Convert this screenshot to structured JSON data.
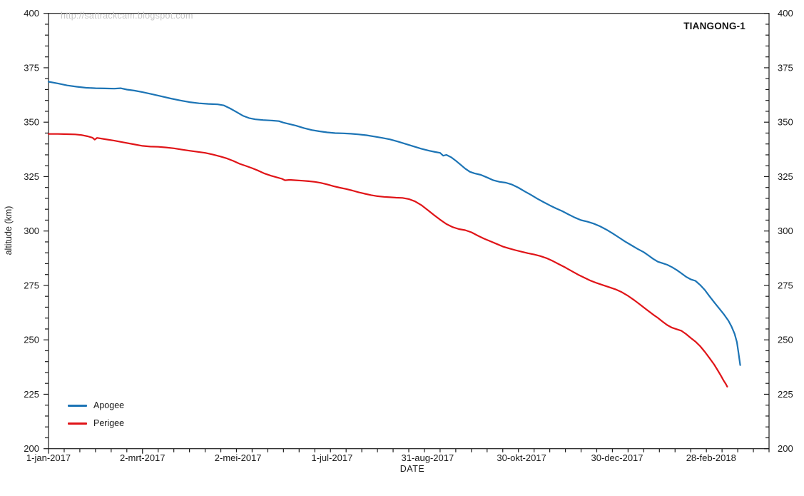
{
  "header": {
    "title": "TIANGONG-1",
    "watermark": "http://sattrackcam.blogspot.com"
  },
  "chart_data": {
    "type": "line",
    "title": "TIANGONG-1",
    "watermark": "http://sattrackcam.blogspot.com",
    "xlabel": "DATE",
    "ylabel": "altitude (km)",
    "grid": false,
    "legend_position": "bottom-left",
    "axis_color": "#1a1a1a",
    "tick_label_color": "#1a1a1a",
    "ylim": [
      200,
      400
    ],
    "y_major_step": 25,
    "y_minor_step": 5,
    "y_tick_labels": [
      200,
      225,
      250,
      275,
      300,
      325,
      350,
      375,
      400
    ],
    "xlim_days": [
      0,
      460
    ],
    "x_minor_step_days": 10,
    "x_ticks": [
      {
        "day": 0,
        "label": "1-jan-2017"
      },
      {
        "day": 60,
        "label": "2-mrt-2017"
      },
      {
        "day": 121,
        "label": "2-mei-2017"
      },
      {
        "day": 181,
        "label": "1-jul-2017"
      },
      {
        "day": 242,
        "label": "31-aug-2017"
      },
      {
        "day": 302,
        "label": "30-okt-2017"
      },
      {
        "day": 363,
        "label": "30-dec-2017"
      },
      {
        "day": 423,
        "label": "28-feb-2018"
      }
    ],
    "series": [
      {
        "name": "Apogee",
        "color": "#1c74b5",
        "points": [
          [
            0,
            368.6
          ],
          [
            6,
            367.8
          ],
          [
            12,
            366.9
          ],
          [
            18,
            366.3
          ],
          [
            24,
            365.8
          ],
          [
            30,
            365.6
          ],
          [
            36,
            365.5
          ],
          [
            42,
            365.4
          ],
          [
            46,
            365.6
          ],
          [
            50,
            365.0
          ],
          [
            55,
            364.5
          ],
          [
            60,
            363.8
          ],
          [
            66,
            362.9
          ],
          [
            72,
            361.9
          ],
          [
            78,
            360.9
          ],
          [
            84,
            360.0
          ],
          [
            90,
            359.2
          ],
          [
            96,
            358.7
          ],
          [
            102,
            358.4
          ],
          [
            108,
            358.2
          ],
          [
            112,
            357.7
          ],
          [
            116,
            356.3
          ],
          [
            120,
            354.7
          ],
          [
            124,
            353.0
          ],
          [
            128,
            351.9
          ],
          [
            132,
            351.3
          ],
          [
            137,
            351.0
          ],
          [
            142,
            350.8
          ],
          [
            147,
            350.5
          ],
          [
            150,
            349.8
          ],
          [
            154,
            349.1
          ],
          [
            158,
            348.4
          ],
          [
            163,
            347.3
          ],
          [
            168,
            346.4
          ],
          [
            173,
            345.8
          ],
          [
            178,
            345.3
          ],
          [
            183,
            345.0
          ],
          [
            188,
            344.9
          ],
          [
            193,
            344.7
          ],
          [
            198,
            344.4
          ],
          [
            203,
            344.0
          ],
          [
            208,
            343.4
          ],
          [
            213,
            342.8
          ],
          [
            218,
            342.1
          ],
          [
            223,
            341.1
          ],
          [
            228,
            340.0
          ],
          [
            233,
            338.9
          ],
          [
            238,
            337.8
          ],
          [
            243,
            336.9
          ],
          [
            247,
            336.3
          ],
          [
            250,
            335.9
          ],
          [
            252,
            334.6
          ],
          [
            254,
            335.0
          ],
          [
            257,
            333.9
          ],
          [
            260,
            332.3
          ],
          [
            263,
            330.5
          ],
          [
            266,
            328.7
          ],
          [
            269,
            327.2
          ],
          [
            272,
            326.5
          ],
          [
            276,
            325.8
          ],
          [
            280,
            324.6
          ],
          [
            284,
            323.3
          ],
          [
            288,
            322.6
          ],
          [
            292,
            322.2
          ],
          [
            296,
            321.3
          ],
          [
            300,
            319.9
          ],
          [
            304,
            318.2
          ],
          [
            308,
            316.6
          ],
          [
            312,
            314.9
          ],
          [
            316,
            313.3
          ],
          [
            320,
            311.8
          ],
          [
            324,
            310.4
          ],
          [
            328,
            309.1
          ],
          [
            332,
            307.6
          ],
          [
            336,
            306.2
          ],
          [
            340,
            305.0
          ],
          [
            344,
            304.3
          ],
          [
            348,
            303.4
          ],
          [
            352,
            302.2
          ],
          [
            356,
            300.7
          ],
          [
            360,
            299.0
          ],
          [
            364,
            297.1
          ],
          [
            368,
            295.2
          ],
          [
            372,
            293.5
          ],
          [
            376,
            291.8
          ],
          [
            380,
            290.3
          ],
          [
            383,
            288.8
          ],
          [
            386,
            287.2
          ],
          [
            389,
            285.9
          ],
          [
            392,
            285.2
          ],
          [
            395,
            284.5
          ],
          [
            398,
            283.4
          ],
          [
            401,
            282.1
          ],
          [
            404,
            280.6
          ],
          [
            407,
            279.0
          ],
          [
            410,
            277.8
          ],
          [
            413,
            277.1
          ],
          [
            416,
            275.2
          ],
          [
            419,
            272.9
          ],
          [
            422,
            270.0
          ],
          [
            425,
            267.2
          ],
          [
            428,
            264.6
          ],
          [
            431,
            261.9
          ],
          [
            434,
            258.9
          ],
          [
            436,
            256.2
          ],
          [
            438,
            252.8
          ],
          [
            439.5,
            248.9
          ],
          [
            440.5,
            244.0
          ],
          [
            441.2,
            240.5
          ],
          [
            441.6,
            238.4
          ]
        ]
      },
      {
        "name": "Perigee",
        "color": "#e01418",
        "points": [
          [
            0,
            344.6
          ],
          [
            6,
            344.6
          ],
          [
            12,
            344.5
          ],
          [
            17,
            344.4
          ],
          [
            21,
            344.1
          ],
          [
            25,
            343.5
          ],
          [
            28,
            342.9
          ],
          [
            29.5,
            342.0
          ],
          [
            31,
            342.8
          ],
          [
            36,
            342.2
          ],
          [
            42,
            341.5
          ],
          [
            48,
            340.7
          ],
          [
            54,
            339.9
          ],
          [
            60,
            339.1
          ],
          [
            65,
            338.8
          ],
          [
            70,
            338.7
          ],
          [
            75,
            338.4
          ],
          [
            80,
            338.0
          ],
          [
            85,
            337.4
          ],
          [
            90,
            336.9
          ],
          [
            95,
            336.4
          ],
          [
            100,
            335.9
          ],
          [
            105,
            335.1
          ],
          [
            110,
            334.2
          ],
          [
            114,
            333.3
          ],
          [
            118,
            332.2
          ],
          [
            122,
            330.9
          ],
          [
            126,
            329.9
          ],
          [
            130,
            328.9
          ],
          [
            134,
            327.7
          ],
          [
            138,
            326.4
          ],
          [
            142,
            325.4
          ],
          [
            146,
            324.6
          ],
          [
            149,
            324.0
          ],
          [
            151,
            323.3
          ],
          [
            154,
            323.5
          ],
          [
            158,
            323.3
          ],
          [
            162,
            323.1
          ],
          [
            166,
            322.9
          ],
          [
            170,
            322.6
          ],
          [
            174,
            322.1
          ],
          [
            178,
            321.4
          ],
          [
            182,
            320.6
          ],
          [
            186,
            319.9
          ],
          [
            190,
            319.3
          ],
          [
            194,
            318.6
          ],
          [
            198,
            317.8
          ],
          [
            202,
            317.1
          ],
          [
            206,
            316.5
          ],
          [
            210,
            316.0
          ],
          [
            214,
            315.7
          ],
          [
            218,
            315.5
          ],
          [
            222,
            315.3
          ],
          [
            226,
            315.2
          ],
          [
            230,
            314.7
          ],
          [
            234,
            313.6
          ],
          [
            238,
            311.9
          ],
          [
            242,
            309.7
          ],
          [
            246,
            307.4
          ],
          [
            250,
            305.2
          ],
          [
            254,
            303.2
          ],
          [
            258,
            301.8
          ],
          [
            262,
            300.9
          ],
          [
            266,
            300.4
          ],
          [
            270,
            299.4
          ],
          [
            274,
            297.9
          ],
          [
            278,
            296.5
          ],
          [
            282,
            295.3
          ],
          [
            286,
            294.1
          ],
          [
            290,
            292.9
          ],
          [
            294,
            292.0
          ],
          [
            298,
            291.2
          ],
          [
            302,
            290.5
          ],
          [
            306,
            289.8
          ],
          [
            310,
            289.2
          ],
          [
            314,
            288.5
          ],
          [
            318,
            287.5
          ],
          [
            322,
            286.2
          ],
          [
            326,
            284.7
          ],
          [
            330,
            283.2
          ],
          [
            334,
            281.6
          ],
          [
            338,
            280.0
          ],
          [
            342,
            278.6
          ],
          [
            346,
            277.2
          ],
          [
            350,
            276.1
          ],
          [
            354,
            275.1
          ],
          [
            358,
            274.2
          ],
          [
            362,
            273.2
          ],
          [
            366,
            271.9
          ],
          [
            370,
            270.2
          ],
          [
            374,
            268.2
          ],
          [
            378,
            266.0
          ],
          [
            382,
            263.8
          ],
          [
            386,
            261.6
          ],
          [
            389,
            260.1
          ],
          [
            392,
            258.4
          ],
          [
            395,
            256.8
          ],
          [
            398,
            255.6
          ],
          [
            401,
            254.9
          ],
          [
            404,
            254.2
          ],
          [
            407,
            252.7
          ],
          [
            410,
            250.9
          ],
          [
            413,
            249.2
          ],
          [
            416,
            247.1
          ],
          [
            419,
            244.5
          ],
          [
            422,
            241.6
          ],
          [
            425,
            238.6
          ],
          [
            427,
            236.3
          ],
          [
            429,
            233.9
          ],
          [
            431,
            231.3
          ],
          [
            432.5,
            229.6
          ],
          [
            433.3,
            228.5
          ]
        ]
      }
    ]
  }
}
